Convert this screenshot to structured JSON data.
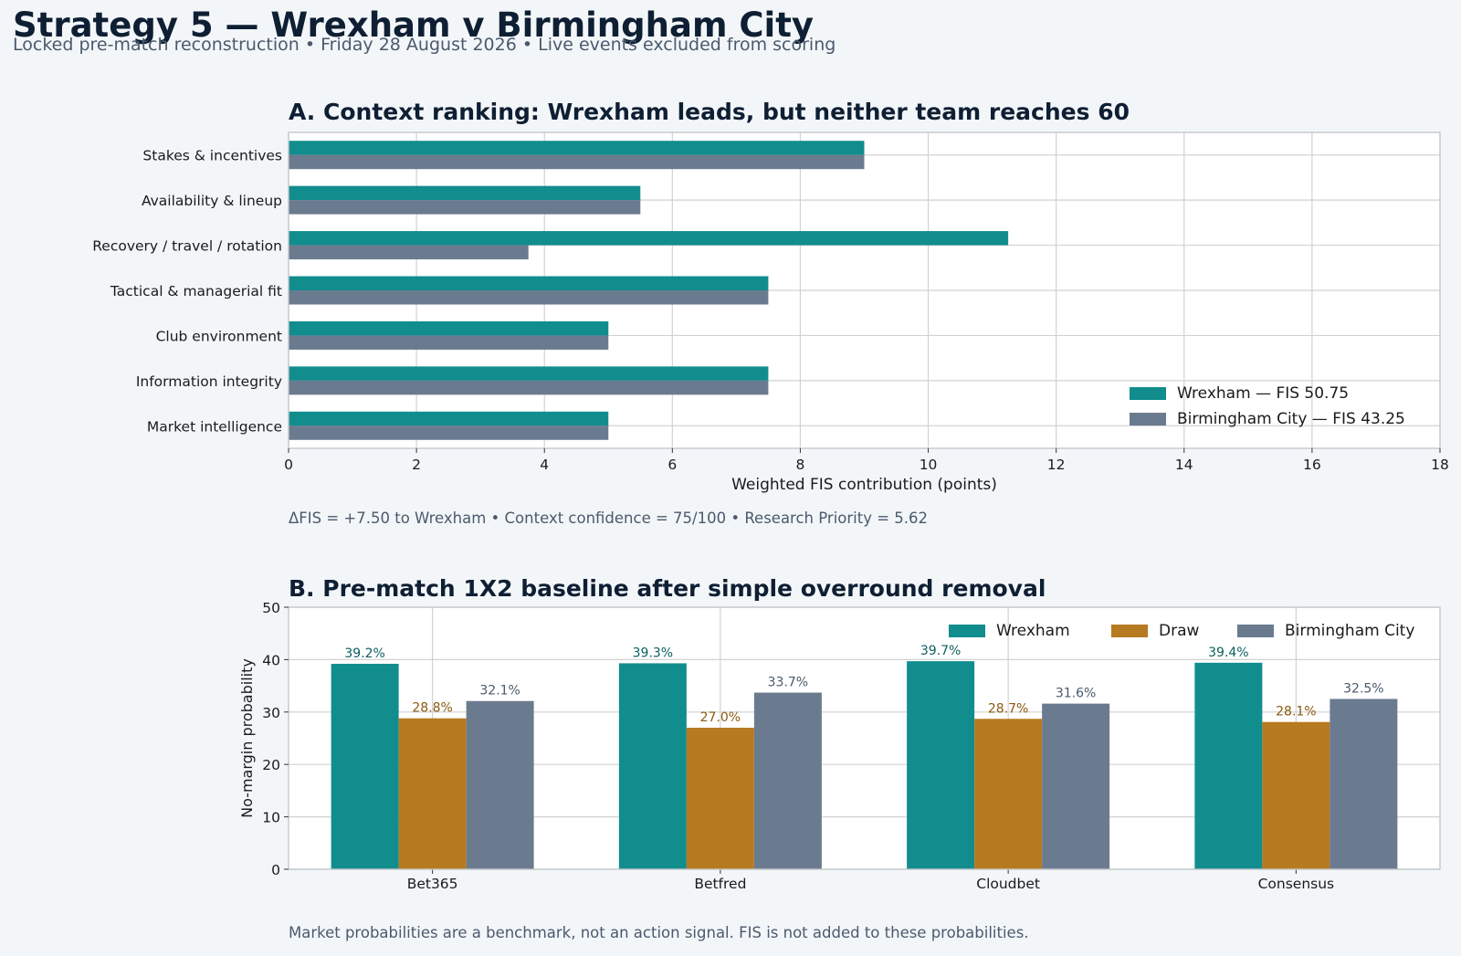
{
  "page": {
    "title": "Strategy 5 — Wrexham v Birmingham City",
    "subtitle": "Locked pre-match reconstruction • Friday 28 August 2026 • Live events excluded from scoring",
    "note_a": "ΔFIS = +7.50 to Wrexham • Context confidence = 75/100 • Research Priority = 5.62",
    "note_b": "Market probabilities are a benchmark, not an action signal. FIS is not added to these probabilities."
  },
  "colors": {
    "wrexham": "#128d8e",
    "draw": "#b67a20",
    "birmingham": "#6b7b8f",
    "grid": "#d2d2d2",
    "axis": "#c4c8cc",
    "text": "#1a1a1a",
    "title": "#0f1f33"
  },
  "chart_data": [
    {
      "type": "bar",
      "orientation": "horizontal",
      "title": "A. Context ranking: Wrexham leads, but neither team reaches 60",
      "xlabel": "Weighted FIS contribution (points)",
      "ylabel": "",
      "xlim": [
        0,
        18
      ],
      "xticks": [
        0,
        2,
        4,
        6,
        8,
        10,
        12,
        14,
        16,
        18
      ],
      "grid": true,
      "legend_position": "bottom-right",
      "categories": [
        "Stakes & incentives",
        "Availability & lineup",
        "Recovery / travel / rotation",
        "Tactical & managerial fit",
        "Club environment",
        "Information integrity",
        "Market intelligence"
      ],
      "series": [
        {
          "name": "Wrexham — FIS 50.75",
          "values": [
            9.0,
            5.5,
            11.25,
            7.5,
            5.0,
            7.5,
            5.0
          ]
        },
        {
          "name": "Birmingham City — FIS 43.25",
          "values": [
            9.0,
            5.5,
            3.75,
            7.5,
            5.0,
            7.5,
            5.0
          ]
        }
      ]
    },
    {
      "type": "bar",
      "orientation": "vertical",
      "title": "B. Pre-match 1X2 baseline after simple overround removal",
      "xlabel": "",
      "ylabel": "No-margin probability",
      "ylim": [
        0,
        50
      ],
      "yticks": [
        0,
        10,
        20,
        30,
        40,
        50
      ],
      "grid": true,
      "legend_position": "top-right",
      "categories": [
        "Bet365",
        "Betfred",
        "Cloudbet",
        "Consensus"
      ],
      "series": [
        {
          "name": "Wrexham",
          "values": [
            39.2,
            39.3,
            39.7,
            39.4
          ],
          "labels": [
            "39.2%",
            "39.3%",
            "39.7%",
            "39.4%"
          ]
        },
        {
          "name": "Draw",
          "values": [
            28.8,
            27.0,
            28.7,
            28.1
          ],
          "labels": [
            "28.8%",
            "27.0%",
            "28.7%",
            "28.1%"
          ]
        },
        {
          "name": "Birmingham City",
          "values": [
            32.1,
            33.7,
            31.6,
            32.5
          ],
          "labels": [
            "32.1%",
            "33.7%",
            "31.6%",
            "32.5%"
          ]
        }
      ]
    }
  ]
}
